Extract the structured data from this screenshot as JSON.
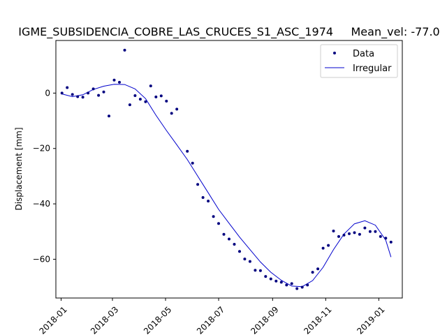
{
  "chart_data": {
    "type": "scatter",
    "title": "IGME_SUBSIDENCIA_COBRE_LAS_CRUCES_S1_ASC_1974     Mean_vel: -77.0",
    "xlabel": "",
    "ylabel": "Displacement [mm]",
    "x_ticks": [
      "2018-01",
      "2018-03",
      "2018-05",
      "2018-07",
      "2018-09",
      "2018-11",
      "2019-01"
    ],
    "x_tick_dates": [
      "2018-01-01",
      "2018-03-01",
      "2018-05-01",
      "2018-07-01",
      "2018-09-01",
      "2018-11-01",
      "2019-01-01"
    ],
    "xlim": [
      "2017-12-26",
      "2019-01-28"
    ],
    "y_ticks": [
      0,
      -20,
      -40,
      -60
    ],
    "y_tick_labels": [
      "0",
      "−20",
      "−40",
      "−60"
    ],
    "ylim": [
      -74,
      19
    ],
    "grid": false,
    "legend": {
      "position": "top-right",
      "entries": [
        "Data",
        "Irregular"
      ]
    },
    "colors": {
      "data": "#00007f",
      "fit": "#0000cc"
    },
    "series": [
      {
        "name": "Data",
        "kind": "scatter",
        "x": [
          "2018-01-02",
          "2018-01-08",
          "2018-01-14",
          "2018-01-20",
          "2018-01-26",
          "2018-02-01",
          "2018-02-07",
          "2018-02-13",
          "2018-02-19",
          "2018-02-25",
          "2018-03-03",
          "2018-03-09",
          "2018-03-15",
          "2018-03-21",
          "2018-03-27",
          "2018-04-02",
          "2018-04-08",
          "2018-04-14",
          "2018-04-20",
          "2018-04-26",
          "2018-05-02",
          "2018-05-08",
          "2018-05-14",
          "2018-05-26",
          "2018-06-01",
          "2018-06-07",
          "2018-06-13",
          "2018-06-19",
          "2018-06-25",
          "2018-07-01",
          "2018-07-07",
          "2018-07-13",
          "2018-07-19",
          "2018-07-25",
          "2018-07-31",
          "2018-08-06",
          "2018-08-12",
          "2018-08-18",
          "2018-08-24",
          "2018-08-30",
          "2018-09-05",
          "2018-09-11",
          "2018-09-17",
          "2018-09-23",
          "2018-09-29",
          "2018-10-05",
          "2018-10-11",
          "2018-10-17",
          "2018-10-23",
          "2018-10-29",
          "2018-11-04",
          "2018-11-10",
          "2018-11-16",
          "2018-11-22",
          "2018-11-28",
          "2018-12-04",
          "2018-12-10",
          "2018-12-16",
          "2018-12-22",
          "2018-12-28",
          "2019-01-03",
          "2019-01-09",
          "2019-01-15"
        ],
        "y": [
          0,
          2,
          -0.5,
          -1.3,
          -1.5,
          0,
          1.5,
          -0.8,
          0.4,
          -8.3,
          4.7,
          3.9,
          15.5,
          -4.2,
          -0.9,
          -2.2,
          -3.1,
          2.6,
          -1.4,
          -1,
          -2.9,
          -7.3,
          -5.8,
          -21,
          -25.3,
          -33,
          -37.7,
          -39,
          -44.6,
          -47.1,
          -51,
          -52.7,
          -54.6,
          -57.2,
          -59.9,
          -60.8,
          -64,
          -64.1,
          -66.2,
          -67.1,
          -67.9,
          -68.3,
          -69.3,
          -68.8,
          -70.6,
          -70.1,
          -69.3,
          -64.7,
          -63.5,
          -56,
          -55,
          -49.8,
          -51.8,
          -51.3,
          -50.8,
          -50.4,
          -51,
          -48.7,
          -50,
          -50,
          -51.8,
          -52.4,
          -53.8
        ]
      },
      {
        "name": "Irregular",
        "kind": "line",
        "x": [
          "2018-01-02",
          "2018-01-14",
          "2018-01-26",
          "2018-02-07",
          "2018-02-19",
          "2018-03-03",
          "2018-03-15",
          "2018-03-27",
          "2018-04-08",
          "2018-04-20",
          "2018-05-02",
          "2018-05-14",
          "2018-05-26",
          "2018-06-07",
          "2018-06-19",
          "2018-07-01",
          "2018-07-13",
          "2018-07-25",
          "2018-08-06",
          "2018-08-18",
          "2018-08-30",
          "2018-09-11",
          "2018-09-23",
          "2018-10-05",
          "2018-10-17",
          "2018-10-29",
          "2018-11-10",
          "2018-11-22",
          "2018-12-04",
          "2018-12-16",
          "2018-12-28",
          "2019-01-09",
          "2019-01-15"
        ],
        "y": [
          -0.3,
          -1.3,
          -0.6,
          1.3,
          2.5,
          3.2,
          3.1,
          1.5,
          -2,
          -8,
          -13.5,
          -18.7,
          -24,
          -30,
          -36,
          -42,
          -47,
          -52,
          -56.5,
          -61,
          -64.7,
          -67.6,
          -69.7,
          -69.9,
          -67.7,
          -62.9,
          -56.5,
          -50.9,
          -47.2,
          -46.1,
          -47.7,
          -53.1,
          -59.2
        ]
      }
    ]
  }
}
